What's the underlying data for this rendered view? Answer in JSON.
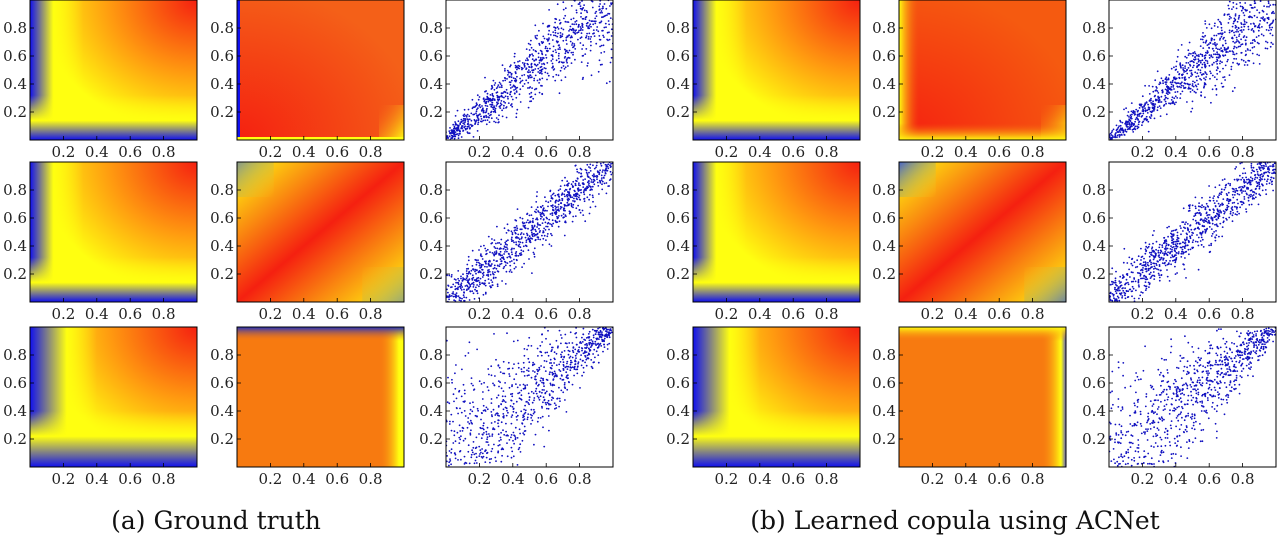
{
  "captions": {
    "left": "(a) Ground truth",
    "right": "(b) Learned copula using ACNet"
  },
  "ticks": {
    "x": [
      "0.2",
      "0.4",
      "0.6",
      "0.8"
    ],
    "y": [
      "0.2",
      "0.4",
      "0.6",
      "0.8"
    ],
    "values": [
      0.2,
      0.4,
      0.6,
      0.8
    ]
  },
  "colors": {
    "low": "#1010ee",
    "mid": "#ffff10",
    "high": "#f52010",
    "scatter": "#1010c0"
  },
  "chart_data": [
    {
      "group": "(a) Ground truth",
      "row": 1,
      "col": 1,
      "type": "heatmap",
      "content": "CDF",
      "pattern": "cdf",
      "xlim": [
        0,
        1
      ],
      "ylim": [
        0,
        1
      ]
    },
    {
      "group": "(a) Ground truth",
      "row": 1,
      "col": 2,
      "type": "heatmap",
      "content": "PDF",
      "pattern": "pdf-mild",
      "xlim": [
        0,
        1
      ],
      "ylim": [
        0,
        1
      ]
    },
    {
      "group": "(a) Ground truth",
      "row": 1,
      "col": 3,
      "type": "scatter",
      "content": "samples",
      "correlation": "high",
      "spread": 0.11,
      "seed": 11,
      "n": 1000,
      "xlim": [
        0,
        1
      ],
      "ylim": [
        0,
        1
      ]
    },
    {
      "group": "(a) Ground truth",
      "row": 2,
      "col": 1,
      "type": "heatmap",
      "content": "CDF",
      "pattern": "cdf",
      "xlim": [
        0,
        1
      ],
      "ylim": [
        0,
        1
      ]
    },
    {
      "group": "(a) Ground truth",
      "row": 2,
      "col": 2,
      "type": "heatmap",
      "content": "PDF",
      "pattern": "pdf-diagonal",
      "xlim": [
        0,
        1
      ],
      "ylim": [
        0,
        1
      ]
    },
    {
      "group": "(a) Ground truth",
      "row": 2,
      "col": 3,
      "type": "scatter",
      "content": "samples",
      "correlation": "medium",
      "spread": 0.09,
      "seed": 12,
      "n": 1000,
      "xlim": [
        0,
        1
      ],
      "ylim": [
        0,
        1
      ]
    },
    {
      "group": "(a) Ground truth",
      "row": 3,
      "col": 1,
      "type": "heatmap",
      "content": "CDF",
      "pattern": "cdf-soft",
      "xlim": [
        0,
        1
      ],
      "ylim": [
        0,
        1
      ]
    },
    {
      "group": "(a) Ground truth",
      "row": 3,
      "col": 2,
      "type": "heatmap",
      "content": "PDF",
      "pattern": "pdf-flat",
      "xlim": [
        0,
        1
      ],
      "ylim": [
        0,
        1
      ]
    },
    {
      "group": "(a) Ground truth",
      "row": 3,
      "col": 3,
      "type": "scatter",
      "content": "samples",
      "correlation": "tail",
      "spread": 0.22,
      "seed": 13,
      "n": 1000,
      "xlim": [
        0,
        1
      ],
      "ylim": [
        0,
        1
      ]
    },
    {
      "group": "(b) Learned copula using ACNet",
      "row": 1,
      "col": 1,
      "type": "heatmap",
      "content": "CDF",
      "pattern": "cdf",
      "xlim": [
        0,
        1
      ],
      "ylim": [
        0,
        1
      ]
    },
    {
      "group": "(b) Learned copula using ACNet",
      "row": 1,
      "col": 2,
      "type": "heatmap",
      "content": "PDF",
      "pattern": "pdf-learned1",
      "xlim": [
        0,
        1
      ],
      "ylim": [
        0,
        1
      ]
    },
    {
      "group": "(b) Learned copula using ACNet",
      "row": 1,
      "col": 3,
      "type": "scatter",
      "content": "samples",
      "correlation": "high",
      "spread": 0.1,
      "seed": 21,
      "n": 1000,
      "xlim": [
        0,
        1
      ],
      "ylim": [
        0,
        1
      ]
    },
    {
      "group": "(b) Learned copula using ACNet",
      "row": 2,
      "col": 1,
      "type": "heatmap",
      "content": "CDF",
      "pattern": "cdf",
      "xlim": [
        0,
        1
      ],
      "ylim": [
        0,
        1
      ]
    },
    {
      "group": "(b) Learned copula using ACNet",
      "row": 2,
      "col": 2,
      "type": "heatmap",
      "content": "PDF",
      "pattern": "pdf-learned2",
      "xlim": [
        0,
        1
      ],
      "ylim": [
        0,
        1
      ]
    },
    {
      "group": "(b) Learned copula using ACNet",
      "row": 2,
      "col": 3,
      "type": "scatter",
      "content": "samples",
      "correlation": "medium",
      "spread": 0.09,
      "seed": 22,
      "n": 1000,
      "xlim": [
        0,
        1
      ],
      "ylim": [
        0,
        1
      ]
    },
    {
      "group": "(b) Learned copula using ACNet",
      "row": 3,
      "col": 1,
      "type": "heatmap",
      "content": "CDF",
      "pattern": "cdf-soft",
      "xlim": [
        0,
        1
      ],
      "ylim": [
        0,
        1
      ]
    },
    {
      "group": "(b) Learned copula using ACNet",
      "row": 3,
      "col": 2,
      "type": "heatmap",
      "content": "PDF",
      "pattern": "pdf-learned3",
      "xlim": [
        0,
        1
      ],
      "ylim": [
        0,
        1
      ]
    },
    {
      "group": "(b) Learned copula using ACNet",
      "row": 3,
      "col": 3,
      "type": "scatter",
      "content": "samples",
      "correlation": "tail",
      "spread": 0.22,
      "seed": 23,
      "n": 1000,
      "xlim": [
        0,
        1
      ],
      "ylim": [
        0,
        1
      ]
    }
  ]
}
